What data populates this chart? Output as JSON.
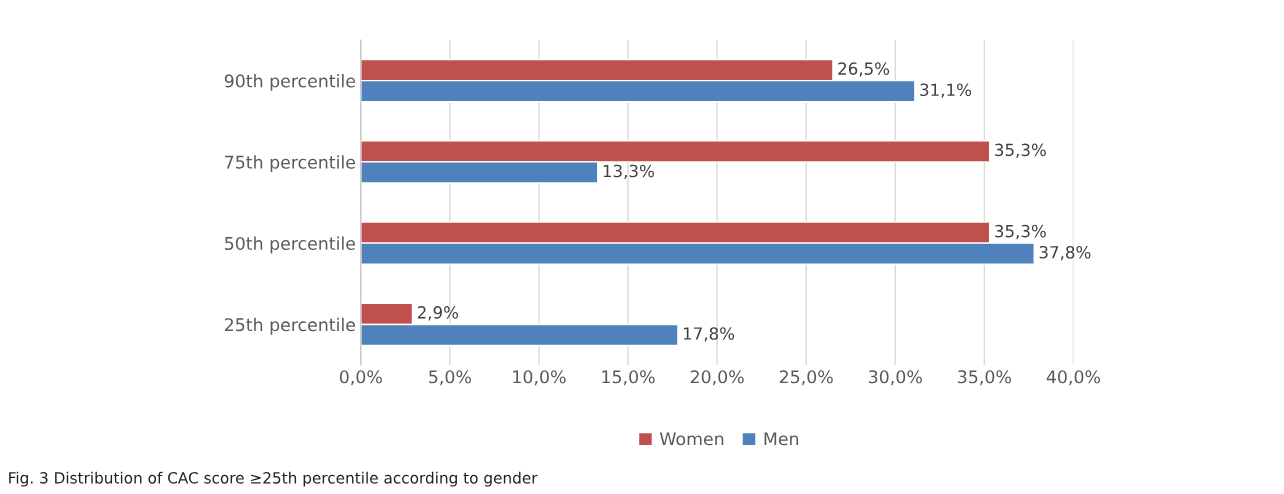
{
  "chart_data": {
    "type": "bar",
    "orientation": "horizontal",
    "categories": [
      "90th percentile",
      "75th percentile",
      "50th percentile",
      "25th percentile"
    ],
    "series": [
      {
        "name": "Women",
        "color": "#c0504d",
        "values": [
          26.5,
          35.3,
          35.3,
          2.9
        ],
        "value_labels": [
          "26,5%",
          "35,3%",
          "35,3%",
          "2,9%"
        ]
      },
      {
        "name": "Men",
        "color": "#4f81bd",
        "values": [
          31.1,
          13.3,
          37.8,
          17.8
        ],
        "value_labels": [
          "31,1%",
          "13,3%",
          "37,8%",
          "17,8%"
        ]
      }
    ],
    "xlim": [
      0,
      40
    ],
    "xticks": [
      {
        "value": 0,
        "label": "0,0%"
      },
      {
        "value": 5,
        "label": "5,0%"
      },
      {
        "value": 10,
        "label": "10,0%"
      },
      {
        "value": 15,
        "label": "15,0%"
      },
      {
        "value": 20,
        "label": "20,0%"
      },
      {
        "value": 25,
        "label": "25,0%"
      },
      {
        "value": 30,
        "label": "30,0%"
      },
      {
        "value": 35,
        "label": "35,0%"
      },
      {
        "value": 40,
        "label": "40,0%"
      }
    ],
    "grid": "x",
    "legend": "bottom",
    "annotations": [
      "Fig. 3 Distribution of CAC score ≥25th percentile according to gender"
    ]
  }
}
